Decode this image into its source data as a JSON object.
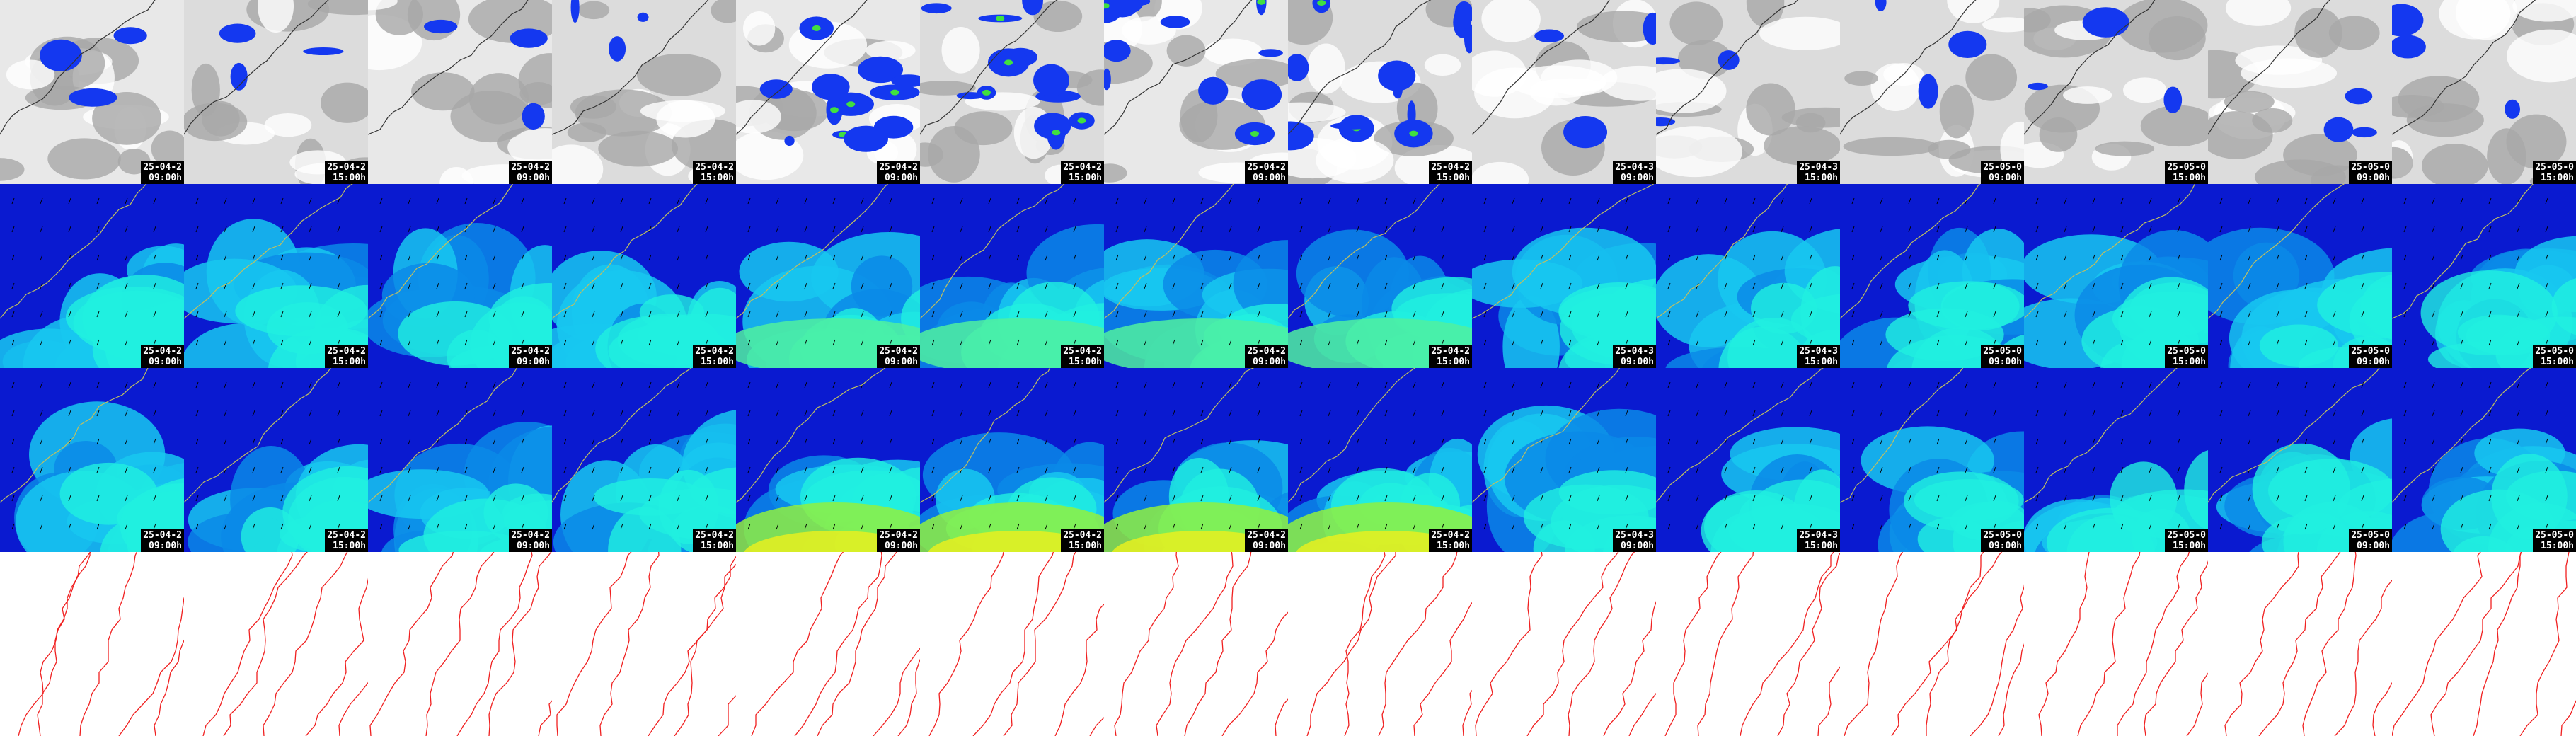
{
  "columns": [
    {
      "date": "25-04-2",
      "time": "09:00h"
    },
    {
      "date": "25-04-2",
      "time": "15:00h"
    },
    {
      "date": "25-04-2",
      "time": "09:00h"
    },
    {
      "date": "25-04-2",
      "time": "15:00h"
    },
    {
      "date": "25-04-2",
      "time": "09:00h"
    },
    {
      "date": "25-04-2",
      "time": "15:00h"
    },
    {
      "date": "25-04-2",
      "time": "09:00h"
    },
    {
      "date": "25-04-2",
      "time": "15:00h"
    },
    {
      "date": "25-04-3",
      "time": "09:00h"
    },
    {
      "date": "25-04-3",
      "time": "15:00h"
    },
    {
      "date": "25-05-0",
      "time": "09:00h"
    },
    {
      "date": "25-05-0",
      "time": "15:00h"
    },
    {
      "date": "25-05-0",
      "time": "09:00h"
    },
    {
      "date": "25-05-0",
      "time": "15:00h"
    }
  ]
}
